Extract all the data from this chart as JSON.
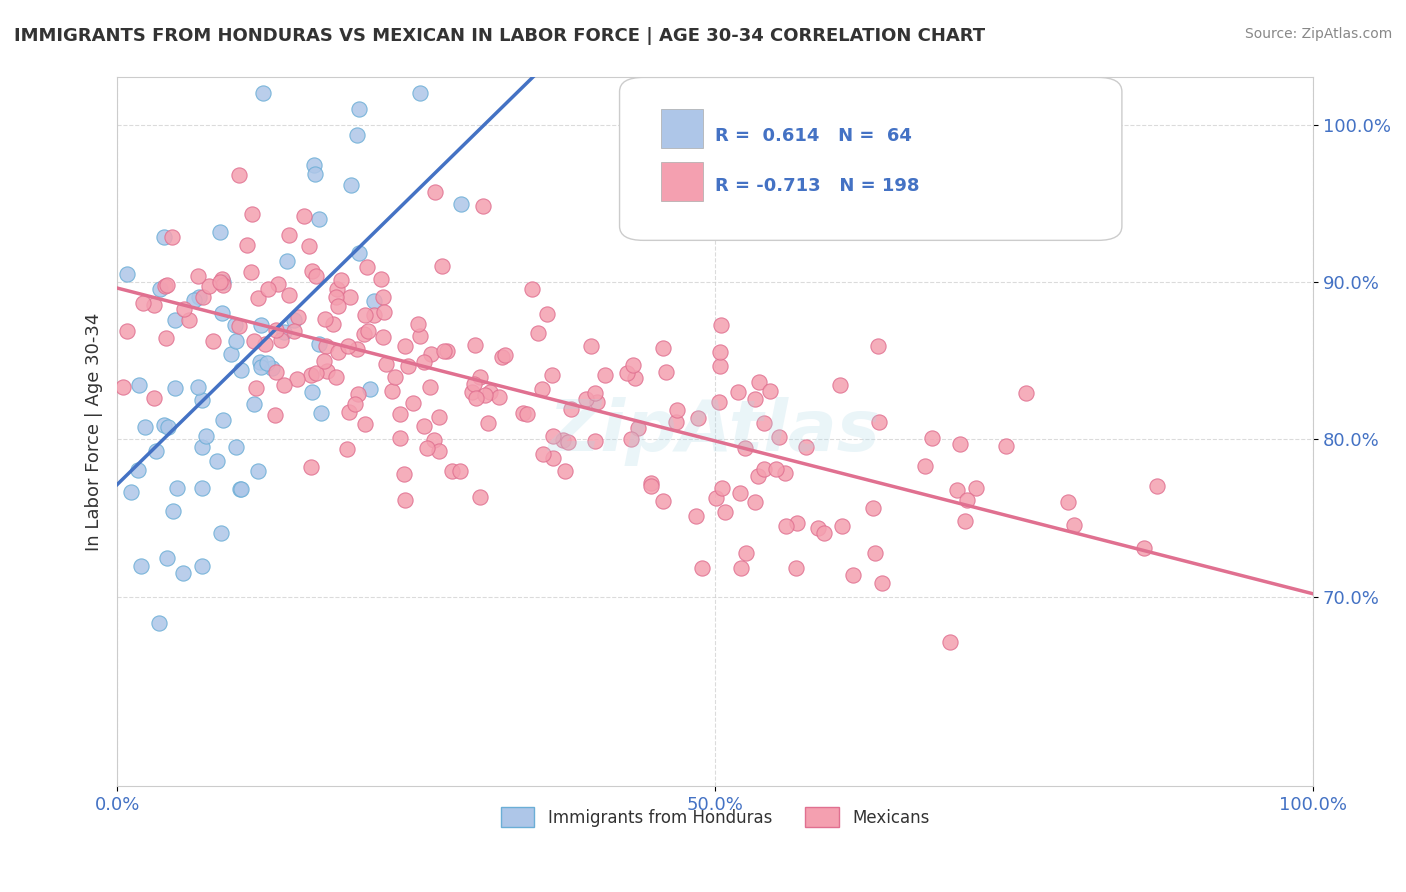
{
  "title": "IMMIGRANTS FROM HONDURAS VS MEXICAN IN LABOR FORCE | AGE 30-34 CORRELATION CHART",
  "source": "Source: ZipAtlas.com",
  "xlabel": "",
  "ylabel": "In Labor Force | Age 30-34",
  "xlim": [
    0.0,
    1.0
  ],
  "ylim": [
    0.58,
    1.03
  ],
  "yticks": [
    0.7,
    0.8,
    0.9,
    1.0
  ],
  "ytick_labels": [
    "70.0%",
    "80.0%",
    "90.0%",
    "100.0%"
  ],
  "xticks": [
    0.0,
    0.5,
    1.0
  ],
  "xtick_labels": [
    "0.0%",
    "50.0%",
    "100.0%"
  ],
  "legend_entries": [
    {
      "label": "Immigrants from Honduras",
      "color": "#aec6e8"
    },
    {
      "label": "Mexicans",
      "color": "#f4a0b0"
    }
  ],
  "R_honduras": 0.614,
  "N_honduras": 64,
  "R_mexicans": -0.713,
  "N_mexicans": 198,
  "honduras_color": "#aec6e8",
  "honduras_edge": "#6baed6",
  "honduas_line_color": "#4472c4",
  "mexicans_color": "#f4a0b0",
  "mexicans_edge": "#e07090",
  "mexicans_line_color": "#e07090",
  "watermark": "ZipAtlas",
  "background_color": "#ffffff",
  "grid_color": "#cccccc",
  "title_color": "#333333",
  "legend_text_color": "#4472c4",
  "seed": 42
}
